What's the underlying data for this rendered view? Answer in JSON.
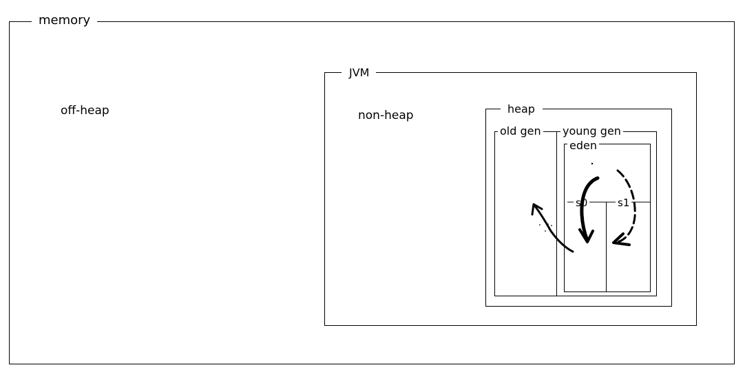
{
  "labels": {
    "memory": "memory",
    "off_heap": "off-heap",
    "jvm": "JVM",
    "non_heap": "non-heap",
    "heap": "heap",
    "old_gen": "old gen",
    "young_gen": "young gen",
    "eden": "eden",
    "s0": "s0",
    "s1": "s1"
  },
  "colors": {
    "line": "#000000",
    "background": "#ffffff"
  }
}
